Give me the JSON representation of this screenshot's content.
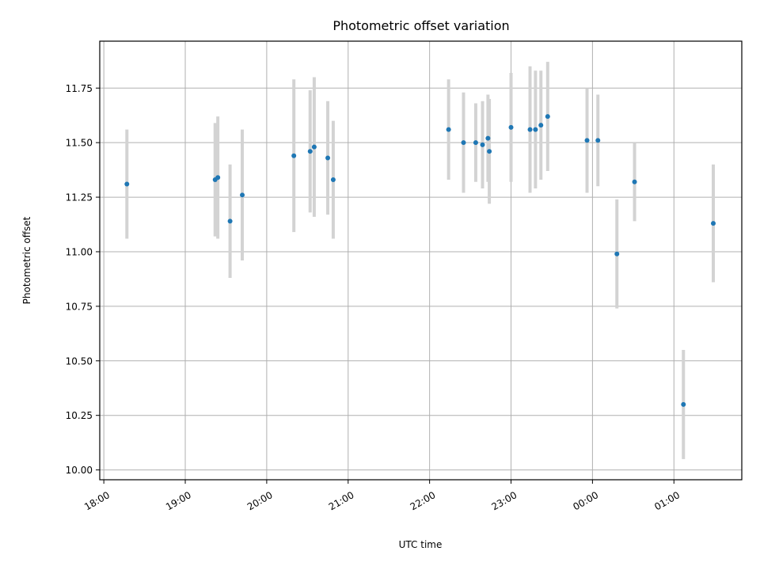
{
  "chart_data": {
    "type": "scatter",
    "title": "Photometric offset variation",
    "xlabel": "UTC time",
    "ylabel": "Photometric offset",
    "x_ticks": [
      "18:00",
      "19:00",
      "20:00",
      "21:00",
      "22:00",
      "23:00",
      "00:00",
      "01:00"
    ],
    "y_ticks": [
      "10.00",
      "10.25",
      "10.50",
      "10.75",
      "11.00",
      "11.25",
      "11.50",
      "11.75"
    ],
    "xlim": [
      "17:57",
      "01:50"
    ],
    "ylim": [
      9.955,
      11.965
    ],
    "grid": true,
    "series": [
      {
        "points": [
          {
            "x": "18:17",
            "y": 11.31,
            "err": 0.25
          },
          {
            "x": "19:22",
            "y": 11.33,
            "err": 0.26
          },
          {
            "x": "19:24",
            "y": 11.34,
            "err": 0.28
          },
          {
            "x": "19:33",
            "y": 11.14,
            "err": 0.26
          },
          {
            "x": "19:42",
            "y": 11.26,
            "err": 0.3
          },
          {
            "x": "20:20",
            "y": 11.44,
            "err": 0.35
          },
          {
            "x": "20:32",
            "y": 11.46,
            "err": 0.28
          },
          {
            "x": "20:35",
            "y": 11.48,
            "err": 0.32
          },
          {
            "x": "20:45",
            "y": 11.43,
            "err": 0.26
          },
          {
            "x": "20:49",
            "y": 11.33,
            "err": 0.27
          },
          {
            "x": "22:14",
            "y": 11.56,
            "err": 0.23
          },
          {
            "x": "22:25",
            "y": 11.5,
            "err": 0.23
          },
          {
            "x": "22:34",
            "y": 11.5,
            "err": 0.18
          },
          {
            "x": "22:39",
            "y": 11.49,
            "err": 0.2
          },
          {
            "x": "22:43",
            "y": 11.52,
            "err": 0.2
          },
          {
            "x": "22:44",
            "y": 11.46,
            "err": 0.24
          },
          {
            "x": "23:00",
            "y": 11.57,
            "err": 0.25
          },
          {
            "x": "23:14",
            "y": 11.56,
            "err": 0.29
          },
          {
            "x": "23:18",
            "y": 11.56,
            "err": 0.27
          },
          {
            "x": "23:22",
            "y": 11.58,
            "err": 0.25
          },
          {
            "x": "23:27",
            "y": 11.62,
            "err": 0.25
          },
          {
            "x": "23:56",
            "y": 11.51,
            "err": 0.24
          },
          {
            "x": "00:04",
            "y": 11.51,
            "err": 0.21
          },
          {
            "x": "00:18",
            "y": 10.99,
            "err": 0.25
          },
          {
            "x": "00:31",
            "y": 11.32,
            "err": 0.18
          },
          {
            "x": "01:07",
            "y": 10.3,
            "err": 0.25
          },
          {
            "x": "01:29",
            "y": 11.13,
            "err": 0.27
          }
        ]
      }
    ],
    "colors": {
      "marker": "#1f77b4",
      "errorbar": "#d3d3d3",
      "grid": "#b0b0b0"
    }
  }
}
